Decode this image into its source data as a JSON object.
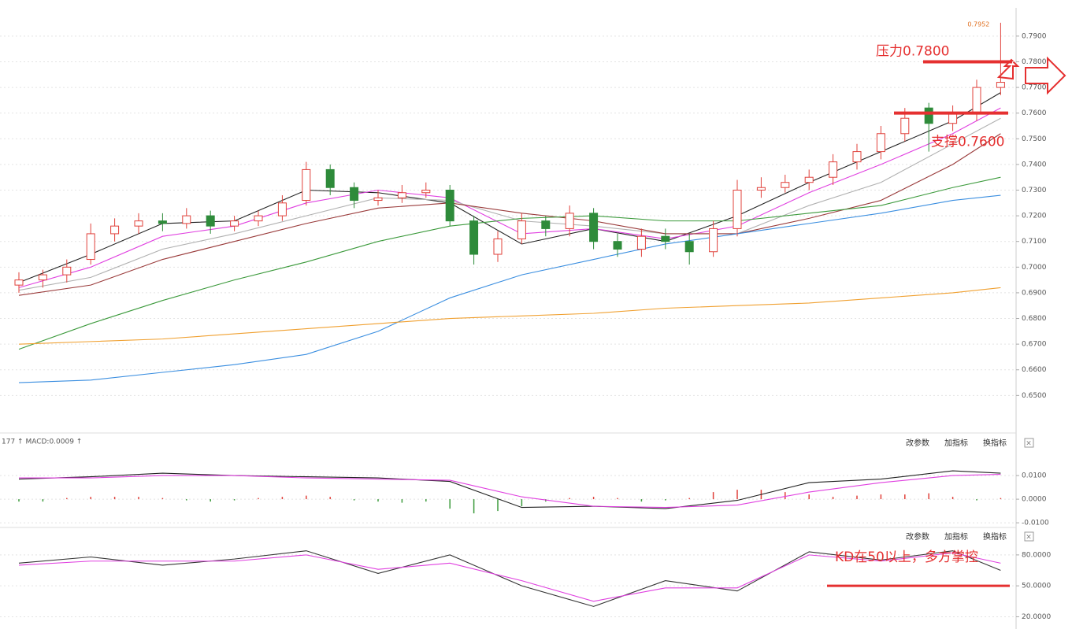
{
  "chart_data": [
    {
      "type": "candlestick",
      "ylim": [
        0.636,
        0.801
      ],
      "yticks": [
        {
          "value": 0.65,
          "label": "0.6500"
        },
        {
          "value": 0.66,
          "label": "0.6600"
        },
        {
          "value": 0.67,
          "label": "0.6700"
        },
        {
          "value": 0.68,
          "label": "0.6800"
        },
        {
          "value": 0.69,
          "label": "0.6900"
        },
        {
          "value": 0.7,
          "label": "0.7000"
        },
        {
          "value": 0.71,
          "label": "0.7100"
        },
        {
          "value": 0.72,
          "label": "0.7200"
        },
        {
          "value": 0.73,
          "label": "0.7300"
        },
        {
          "value": 0.74,
          "label": "0.7400"
        },
        {
          "value": 0.75,
          "label": "0.7500"
        },
        {
          "value": 0.76,
          "label": "0.7600"
        },
        {
          "value": 0.77,
          "label": "0.7700"
        },
        {
          "value": 0.78,
          "label": "0.7800"
        },
        {
          "value": 0.79,
          "label": "0.7900"
        }
      ],
      "up_color": "#e0403a",
      "down_color": "#2e8b3a",
      "open": [
        0.693,
        0.695,
        0.697,
        0.703,
        0.713,
        0.716,
        0.718,
        0.717,
        0.72,
        0.716,
        0.718,
        0.72,
        0.726,
        0.738,
        0.731,
        0.726,
        0.727,
        0.729,
        0.73,
        0.718,
        0.705,
        0.711,
        0.718,
        0.715,
        0.721,
        0.71,
        0.707,
        0.712,
        0.71,
        0.706,
        0.715,
        0.73,
        0.731,
        0.733,
        0.735,
        0.741,
        0.745,
        0.752,
        0.762,
        0.756,
        0.76,
        0.77
      ],
      "high": [
        0.698,
        0.699,
        0.703,
        0.717,
        0.719,
        0.721,
        0.721,
        0.723,
        0.722,
        0.72,
        0.722,
        0.728,
        0.741,
        0.74,
        0.733,
        0.73,
        0.732,
        0.733,
        0.732,
        0.72,
        0.714,
        0.721,
        0.72,
        0.724,
        0.723,
        0.713,
        0.715,
        0.715,
        0.713,
        0.718,
        0.734,
        0.735,
        0.736,
        0.738,
        0.744,
        0.748,
        0.755,
        0.762,
        0.764,
        0.763,
        0.773,
        0.7952
      ],
      "low": [
        0.69,
        0.692,
        0.694,
        0.701,
        0.71,
        0.713,
        0.714,
        0.715,
        0.713,
        0.714,
        0.716,
        0.718,
        0.724,
        0.728,
        0.723,
        0.724,
        0.725,
        0.727,
        0.716,
        0.701,
        0.702,
        0.709,
        0.712,
        0.712,
        0.707,
        0.704,
        0.704,
        0.707,
        0.701,
        0.704,
        0.712,
        0.727,
        0.729,
        0.73,
        0.732,
        0.738,
        0.742,
        0.749,
        0.745,
        0.753,
        0.757,
        0.767
      ],
      "close": [
        0.695,
        0.697,
        0.7,
        0.713,
        0.716,
        0.718,
        0.717,
        0.72,
        0.716,
        0.718,
        0.72,
        0.725,
        0.738,
        0.731,
        0.726,
        0.727,
        0.729,
        0.73,
        0.718,
        0.705,
        0.711,
        0.718,
        0.715,
        0.721,
        0.71,
        0.707,
        0.712,
        0.71,
        0.706,
        0.715,
        0.73,
        0.731,
        0.733,
        0.735,
        0.741,
        0.745,
        0.752,
        0.758,
        0.756,
        0.76,
        0.77,
        0.772
      ],
      "series": [
        {
          "color": "#222222",
          "x": [
            0,
            3,
            6,
            9,
            12,
            15,
            18,
            21,
            24,
            27,
            30,
            33,
            36,
            39,
            41
          ],
          "values": [
            0.694,
            0.705,
            0.717,
            0.718,
            0.73,
            0.729,
            0.725,
            0.709,
            0.715,
            0.71,
            0.72,
            0.733,
            0.745,
            0.757,
            0.768
          ]
        },
        {
          "color": "#e040e0",
          "x": [
            0,
            3,
            6,
            9,
            12,
            15,
            18,
            21,
            24,
            27,
            30,
            33,
            36,
            39,
            41
          ],
          "values": [
            0.692,
            0.7,
            0.712,
            0.716,
            0.725,
            0.73,
            0.727,
            0.713,
            0.715,
            0.711,
            0.716,
            0.729,
            0.74,
            0.752,
            0.762
          ]
        },
        {
          "color": "#b0b0b0",
          "x": [
            0,
            3,
            6,
            9,
            12,
            15,
            18,
            21,
            24,
            27,
            30,
            33,
            36,
            39,
            41
          ],
          "values": [
            0.691,
            0.696,
            0.707,
            0.713,
            0.72,
            0.727,
            0.726,
            0.718,
            0.716,
            0.713,
            0.713,
            0.724,
            0.733,
            0.748,
            0.758
          ]
        },
        {
          "color": "#9a3b3b",
          "x": [
            0,
            3,
            6,
            9,
            12,
            15,
            18,
            21,
            24,
            27,
            30,
            33,
            36,
            39,
            41
          ],
          "values": [
            0.689,
            0.693,
            0.703,
            0.71,
            0.717,
            0.723,
            0.725,
            0.721,
            0.718,
            0.713,
            0.713,
            0.719,
            0.726,
            0.74,
            0.752
          ]
        },
        {
          "color": "#3c9a3c",
          "x": [
            0,
            3,
            6,
            9,
            12,
            15,
            18,
            21,
            24,
            27,
            30,
            33,
            36,
            39,
            41
          ],
          "values": [
            0.668,
            0.678,
            0.687,
            0.695,
            0.702,
            0.71,
            0.716,
            0.719,
            0.72,
            0.718,
            0.718,
            0.721,
            0.724,
            0.731,
            0.735
          ]
        },
        {
          "color": "#3a8ee0",
          "x": [
            0,
            3,
            6,
            9,
            12,
            15,
            18,
            21,
            24,
            27,
            30,
            33,
            36,
            39,
            41
          ],
          "values": [
            0.655,
            0.656,
            0.659,
            0.662,
            0.666,
            0.675,
            0.688,
            0.697,
            0.703,
            0.709,
            0.713,
            0.717,
            0.721,
            0.726,
            0.728
          ]
        },
        {
          "color": "#f0a030",
          "x": [
            0,
            3,
            6,
            9,
            12,
            15,
            18,
            21,
            24,
            27,
            30,
            33,
            36,
            39,
            41
          ],
          "values": [
            0.67,
            0.671,
            0.672,
            0.674,
            0.676,
            0.678,
            0.68,
            0.681,
            0.682,
            0.684,
            0.685,
            0.686,
            0.688,
            0.69,
            0.692
          ]
        }
      ],
      "peak_label": "0.7952",
      "resistance": {
        "label": "压力0.7800",
        "value": 0.78
      },
      "support": {
        "label": "支撑0.7600",
        "value": 0.76
      }
    },
    {
      "type": "macd",
      "header": "177 ↑ MACD:0.0009 ↑",
      "buttons": [
        "改参数",
        "加指标",
        "换指标"
      ],
      "ylim": [
        -0.0113,
        0.0207
      ],
      "yticks": [
        {
          "value": 0.01,
          "label": "0.0100"
        },
        {
          "value": 0,
          "label": "0.0000"
        },
        {
          "value": -0.01,
          "label": "-0.0100"
        }
      ],
      "series": [
        {
          "color": "#222222",
          "x": [
            0,
            3,
            6,
            9,
            12,
            15,
            18,
            21,
            24,
            27,
            30,
            33,
            36,
            39,
            41
          ],
          "values": [
            0.0085,
            0.0095,
            0.011,
            0.01,
            0.0095,
            0.009,
            0.0075,
            -0.0035,
            -0.003,
            -0.004,
            -0.0005,
            0.007,
            0.0085,
            0.012,
            0.011
          ]
        },
        {
          "color": "#e040e0",
          "x": [
            0,
            3,
            6,
            9,
            12,
            15,
            18,
            21,
            24,
            27,
            30,
            33,
            36,
            39,
            41
          ],
          "values": [
            0.009,
            0.009,
            0.01,
            0.01,
            0.009,
            0.0085,
            0.008,
            0.001,
            -0.003,
            -0.0035,
            -0.0025,
            0.003,
            0.007,
            0.01,
            0.0105
          ]
        }
      ],
      "histogram": [
        -0.001,
        -0.001,
        0.0005,
        0.001,
        0.001,
        0.001,
        0.0005,
        -0.0005,
        -0.001,
        -0.0005,
        0.0005,
        0.001,
        0.0015,
        0.001,
        -0.0005,
        -0.001,
        -0.0015,
        -0.001,
        -0.004,
        -0.006,
        -0.005,
        -0.003,
        -0.001,
        0.0005,
        0.001,
        0.0005,
        -0.001,
        -0.0005,
        0.0005,
        0.003,
        0.004,
        0.004,
        0.003,
        0.002,
        0.001,
        0.0015,
        0.002,
        0.002,
        0.0025,
        0.001,
        -0.0005,
        0.0005
      ]
    },
    {
      "type": "kd",
      "buttons": [
        "改参数",
        "加指标",
        "换指标"
      ],
      "ylim": [
        15,
        99
      ],
      "yticks": [
        {
          "value": 80,
          "label": "80.0000"
        },
        {
          "value": 50,
          "label": "50.0000"
        },
        {
          "value": 20,
          "label": "20.0000"
        }
      ],
      "series": [
        {
          "color": "#333333",
          "x": [
            0,
            3,
            6,
            9,
            12,
            15,
            18,
            21,
            24,
            27,
            30,
            33,
            36,
            39,
            41
          ],
          "values": [
            72,
            78,
            70,
            76,
            84,
            62,
            80,
            50,
            30,
            55,
            45,
            83,
            75,
            84,
            65
          ]
        },
        {
          "color": "#e040e0",
          "x": [
            0,
            3,
            6,
            9,
            12,
            15,
            18,
            21,
            24,
            27,
            30,
            33,
            36,
            39,
            41
          ],
          "values": [
            70,
            74,
            74,
            74,
            80,
            66,
            72,
            55,
            35,
            48,
            48,
            80,
            74,
            82,
            72
          ]
        }
      ],
      "note": {
        "label": "KD在50以上，多方掌控",
        "value": 50
      }
    }
  ]
}
